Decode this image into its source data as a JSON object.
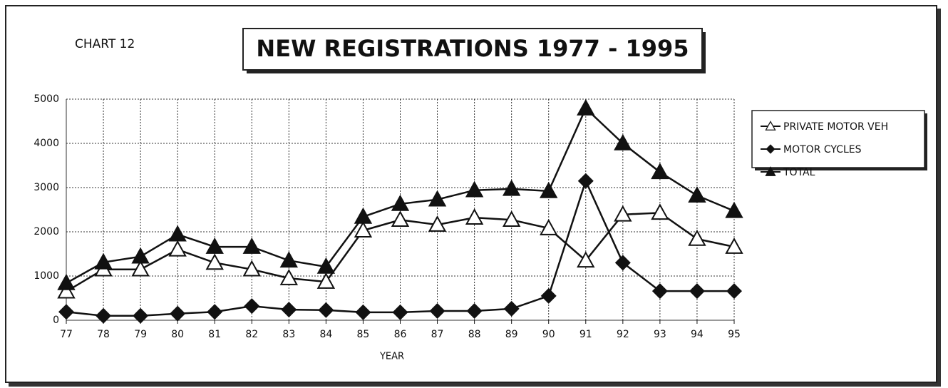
{
  "chart_data": {
    "type": "line",
    "label": "CHART 12",
    "title": "NEW REGISTRATIONS 1977 - 1995",
    "x_label": "YEAR",
    "categories": [
      "77",
      "78",
      "79",
      "80",
      "81",
      "82",
      "83",
      "84",
      "85",
      "86",
      "87",
      "88",
      "89",
      "90",
      "91",
      "92",
      "93",
      "94",
      "95"
    ],
    "series": [
      {
        "name": "PRIVATE MOTOR VEH",
        "color": "#111111",
        "marker": "open-triangle",
        "values": [
          650,
          1150,
          1150,
          1600,
          1300,
          1150,
          950,
          870,
          2030,
          2270,
          2160,
          2320,
          2270,
          2080,
          1350,
          2390,
          2430,
          1840,
          1660
        ]
      },
      {
        "name": "MOTOR CYCLES",
        "color": "#111111",
        "marker": "diamond",
        "values": [
          190,
          100,
          100,
          150,
          190,
          320,
          240,
          230,
          180,
          180,
          210,
          210,
          260,
          550,
          3150,
          1300,
          660,
          660,
          660
        ]
      },
      {
        "name": "TOTAL",
        "color": "#111111",
        "marker": "filled-triangle",
        "values": [
          840,
          1310,
          1440,
          1940,
          1660,
          1660,
          1350,
          1210,
          2340,
          2630,
          2730,
          2940,
          2970,
          2920,
          4790,
          4000,
          3350,
          2820,
          2470
        ]
      }
    ],
    "ylim": [
      0,
      5000
    ],
    "yticks": [
      0,
      1000,
      2000,
      3000,
      4000,
      5000
    ],
    "grid": true
  }
}
